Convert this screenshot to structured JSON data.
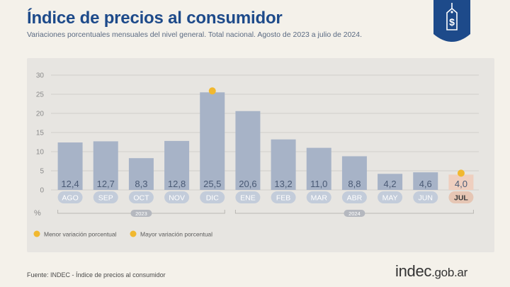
{
  "header": {
    "title": "Índice de precios al consumidor",
    "subtitle": "Variaciones porcentuales mensuales del nivel general. Total nacional. Agosto de 2023 a julio de 2024.",
    "badge_icon": "price-tag-dollar-icon"
  },
  "footer": {
    "source": "Fuente: INDEC - Índice de precios al consumidor",
    "logo_main": "indec",
    "logo_domain": ".gob.ar"
  },
  "colors": {
    "bar": "#a7b3c7",
    "highlight_bar": "#efcfbf",
    "label_pill": "#c3ccda",
    "highlight_label_pill": "#e6c6b4",
    "marker": "#f1b82f",
    "title": "#1d4a8a",
    "badge": "#1d4a8a"
  },
  "chart_data": {
    "type": "bar",
    "categories": [
      "AGO",
      "SEP",
      "OCT",
      "NOV",
      "DIC",
      "ENE",
      "FEB",
      "MAR",
      "ABR",
      "MAY",
      "JUN",
      "JUL"
    ],
    "values": [
      12.4,
      12.7,
      8.3,
      12.8,
      25.5,
      20.6,
      13.2,
      11.0,
      8.8,
      4.2,
      4.6,
      4.0
    ],
    "value_labels": [
      "12,4",
      "12,7",
      "8,3",
      "12,8",
      "25,5",
      "20,6",
      "13,2",
      "11,0",
      "8,8",
      "4,2",
      "4,6",
      "4,0"
    ],
    "ylabel": "%",
    "ylim": [
      0,
      30
    ],
    "yticks": [
      0,
      5,
      10,
      15,
      20,
      25,
      30
    ],
    "grid": true,
    "year_groups": [
      {
        "label": "2023",
        "categories": [
          "AGO",
          "SEP",
          "OCT",
          "NOV",
          "DIC"
        ]
      },
      {
        "label": "2024",
        "categories": [
          "ENE",
          "FEB",
          "MAR",
          "ABR",
          "MAY",
          "JUN",
          "JUL"
        ]
      }
    ],
    "markers": [
      {
        "category": "JUL",
        "label": "Menor variación porcentual"
      },
      {
        "category": "DIC",
        "label": "Mayor variación porcentual"
      }
    ],
    "highlighted_category": "JUL",
    "legend_position": "bottom-left"
  }
}
